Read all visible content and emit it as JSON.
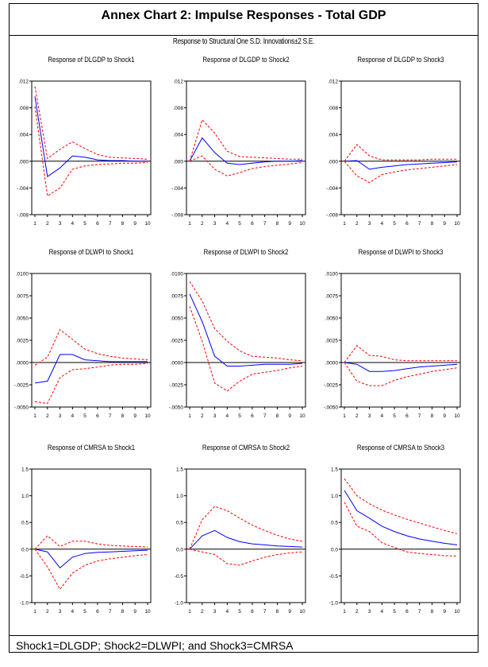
{
  "header": {
    "title": "Annex Chart 2: Impulse Responses - Total GDP",
    "subtitle": "Response to Structural One S.D. Innovations±2 S.E."
  },
  "footer": {
    "note": "Shock1=DLGDP; Shock2=DLWPI; and Shock3=CMRSA"
  },
  "colors": {
    "response": "#0000ff",
    "band": "#ff0000",
    "axis": "#000000"
  },
  "chart_data": [
    {
      "type": "line",
      "title": "Response of DLGDP to Shock1",
      "x": [
        1,
        2,
        3,
        4,
        5,
        6,
        7,
        8,
        9,
        10
      ],
      "ylim": [
        -0.008,
        0.012
      ],
      "yticks": [
        ".012",
        ".008",
        ".004",
        ".000",
        "-.004",
        "-.008"
      ],
      "series": [
        {
          "name": "response",
          "values": [
            0.0097,
            -0.0023,
            -0.001,
            0.0008,
            0.0006,
            0.0002,
            0.0001,
            0.0001,
            0.0,
            0.0
          ]
        },
        {
          "name": "upper",
          "values": [
            0.0112,
            0.0004,
            0.0018,
            0.0029,
            0.0019,
            0.001,
            0.0006,
            0.0005,
            0.0004,
            0.0003
          ]
        },
        {
          "name": "lower",
          "values": [
            0.0082,
            -0.0052,
            -0.004,
            -0.0012,
            -0.0007,
            -0.0005,
            -0.0004,
            -0.0003,
            -0.0003,
            -0.0002
          ]
        }
      ]
    },
    {
      "type": "line",
      "title": "Response of DLGDP to Shock2",
      "x": [
        1,
        2,
        3,
        4,
        5,
        6,
        7,
        8,
        9,
        10
      ],
      "ylim": [
        -0.008,
        0.012
      ],
      "yticks": [
        ".012",
        ".008",
        ".004",
        ".000",
        "-.004",
        "-.008"
      ],
      "series": [
        {
          "name": "response",
          "values": [
            0.0,
            0.0035,
            0.0013,
            -0.0003,
            -0.0005,
            -0.0003,
            -0.0001,
            0.0,
            0.0,
            0.0001
          ]
        },
        {
          "name": "upper",
          "values": [
            0.0,
            0.0062,
            0.0042,
            0.0015,
            0.0007,
            0.0006,
            0.0005,
            0.0004,
            0.0003,
            0.0003
          ]
        },
        {
          "name": "lower",
          "values": [
            0.0,
            0.0008,
            -0.0012,
            -0.0022,
            -0.0017,
            -0.0011,
            -0.0008,
            -0.0006,
            -0.0004,
            -0.0002
          ]
        }
      ]
    },
    {
      "type": "line",
      "title": "Response of DLGDP to Shock3",
      "x": [
        1,
        2,
        3,
        4,
        5,
        6,
        7,
        8,
        9,
        10
      ],
      "ylim": [
        -0.008,
        0.012
      ],
      "yticks": [
        ".012",
        ".008",
        ".004",
        ".000",
        "-.004",
        "-.008"
      ],
      "series": [
        {
          "name": "response",
          "values": [
            0.0,
            0.0001,
            -0.0012,
            -0.0009,
            -0.0007,
            -0.0005,
            -0.0004,
            -0.0003,
            -0.0002,
            -0.0001
          ]
        },
        {
          "name": "upper",
          "values": [
            0.0,
            0.0025,
            0.0008,
            0.0002,
            0.0002,
            0.0002,
            0.0002,
            0.0003,
            0.0003,
            0.0003
          ]
        },
        {
          "name": "lower",
          "values": [
            0.0,
            -0.0022,
            -0.0032,
            -0.002,
            -0.0016,
            -0.0013,
            -0.0011,
            -0.0009,
            -0.0007,
            -0.0005
          ]
        }
      ]
    },
    {
      "type": "line",
      "title": "Response of DLWPI to Shock1",
      "x": [
        1,
        2,
        3,
        4,
        5,
        6,
        7,
        8,
        9,
        10
      ],
      "ylim": [
        -0.005,
        0.01
      ],
      "yticks": [
        ".0100",
        ".0075",
        ".0050",
        ".0025",
        ".0000",
        "-.0025",
        "-.0050"
      ],
      "series": [
        {
          "name": "response",
          "values": [
            -0.0023,
            -0.0021,
            0.0009,
            0.0009,
            0.0003,
            0.0002,
            0.0001,
            0.0001,
            0.0001,
            0.0001
          ]
        },
        {
          "name": "upper",
          "values": [
            -0.0003,
            0.0006,
            0.0037,
            0.0026,
            0.0015,
            0.001,
            0.0007,
            0.0005,
            0.0004,
            0.0003
          ]
        },
        {
          "name": "lower",
          "values": [
            -0.0044,
            -0.0046,
            -0.0017,
            -0.0008,
            -0.0007,
            -0.0005,
            -0.0003,
            -0.0002,
            -0.0002,
            -0.0001
          ]
        }
      ]
    },
    {
      "type": "line",
      "title": "Response of DLWPI to Shock2",
      "x": [
        1,
        2,
        3,
        4,
        5,
        6,
        7,
        8,
        9,
        10
      ],
      "ylim": [
        -0.005,
        0.01
      ],
      "yticks": [
        ".0100",
        ".0075",
        ".0050",
        ".0025",
        ".0000",
        "-.0025",
        "-.0050"
      ],
      "series": [
        {
          "name": "response",
          "values": [
            0.0077,
            0.0046,
            0.0007,
            -0.0004,
            -0.0004,
            -0.0003,
            -0.0002,
            -0.0002,
            -0.0002,
            -0.0001
          ]
        },
        {
          "name": "upper",
          "values": [
            0.0091,
            0.0069,
            0.0038,
            0.0024,
            0.0013,
            0.0007,
            0.0006,
            0.0005,
            0.0003,
            0.0002
          ]
        },
        {
          "name": "lower",
          "values": [
            0.0063,
            0.0024,
            -0.0023,
            -0.0032,
            -0.0021,
            -0.0013,
            -0.0011,
            -0.0009,
            -0.0006,
            -0.0004
          ]
        }
      ]
    },
    {
      "type": "line",
      "title": "Response of DLWPI to Shock3",
      "x": [
        1,
        2,
        3,
        4,
        5,
        6,
        7,
        8,
        9,
        10
      ],
      "ylim": [
        -0.005,
        0.01
      ],
      "yticks": [
        ".0100",
        ".0075",
        ".0050",
        ".0025",
        ".0000",
        "-.0025",
        "-.0050"
      ],
      "series": [
        {
          "name": "response",
          "values": [
            0.0,
            -0.0002,
            -0.001,
            -0.001,
            -0.0009,
            -0.0007,
            -0.0005,
            -0.0004,
            -0.0003,
            -0.0002
          ]
        },
        {
          "name": "upper",
          "values": [
            0.0,
            0.0019,
            0.0008,
            0.0007,
            0.0003,
            0.0002,
            0.0002,
            0.0002,
            0.0002,
            0.0002
          ]
        },
        {
          "name": "lower",
          "values": [
            0.0,
            -0.0021,
            -0.0026,
            -0.0026,
            -0.002,
            -0.0016,
            -0.0013,
            -0.001,
            -0.0008,
            -0.0006
          ]
        }
      ]
    },
    {
      "type": "line",
      "title": "Response of CMRSA to Shock1",
      "x": [
        1,
        2,
        3,
        4,
        5,
        6,
        7,
        8,
        9,
        10
      ],
      "ylim": [
        -1.0,
        1.5
      ],
      "yticks": [
        "1.5",
        "1.0",
        "0.5",
        "0.0",
        "-0.5",
        "-1.0"
      ],
      "series": [
        {
          "name": "response",
          "values": [
            0.0,
            -0.05,
            -0.35,
            -0.15,
            -0.08,
            -0.06,
            -0.05,
            -0.04,
            -0.03,
            -0.02
          ]
        },
        {
          "name": "upper",
          "values": [
            0.0,
            0.25,
            0.05,
            0.15,
            0.15,
            0.1,
            0.07,
            0.06,
            0.05,
            0.04
          ]
        },
        {
          "name": "lower",
          "values": [
            0.0,
            -0.33,
            -0.75,
            -0.45,
            -0.3,
            -0.22,
            -0.18,
            -0.15,
            -0.12,
            -0.1
          ]
        }
      ]
    },
    {
      "type": "line",
      "title": "Response of CMRSA to Shock2",
      "x": [
        1,
        2,
        3,
        4,
        5,
        6,
        7,
        8,
        9,
        10
      ],
      "ylim": [
        -1.0,
        1.5
      ],
      "yticks": [
        "1.5",
        "1.0",
        "0.5",
        "0.0",
        "-0.5",
        "-1.0"
      ],
      "series": [
        {
          "name": "response",
          "values": [
            0.0,
            0.25,
            0.35,
            0.22,
            0.14,
            0.1,
            0.08,
            0.06,
            0.05,
            0.04
          ]
        },
        {
          "name": "upper",
          "values": [
            0.0,
            0.55,
            0.8,
            0.72,
            0.58,
            0.45,
            0.35,
            0.26,
            0.19,
            0.15
          ]
        },
        {
          "name": "lower",
          "values": [
            0.0,
            -0.05,
            -0.1,
            -0.27,
            -0.3,
            -0.22,
            -0.15,
            -0.1,
            -0.07,
            -0.05
          ]
        }
      ]
    },
    {
      "type": "line",
      "title": "Response of CMRSA to Shock3",
      "x": [
        1,
        2,
        3,
        4,
        5,
        6,
        7,
        8,
        9,
        10
      ],
      "ylim": [
        -1.0,
        1.5
      ],
      "yticks": [
        "1.5",
        "1.0",
        "0.5",
        "0.0",
        "-0.5",
        "-1.0"
      ],
      "series": [
        {
          "name": "response",
          "values": [
            1.1,
            0.72,
            0.58,
            0.43,
            0.33,
            0.25,
            0.19,
            0.15,
            0.11,
            0.08
          ]
        },
        {
          "name": "upper",
          "values": [
            1.32,
            1.0,
            0.85,
            0.73,
            0.64,
            0.56,
            0.49,
            0.42,
            0.35,
            0.29
          ]
        },
        {
          "name": "lower",
          "values": [
            0.88,
            0.43,
            0.33,
            0.12,
            0.03,
            -0.05,
            -0.08,
            -0.1,
            -0.12,
            -0.13
          ]
        }
      ]
    }
  ]
}
